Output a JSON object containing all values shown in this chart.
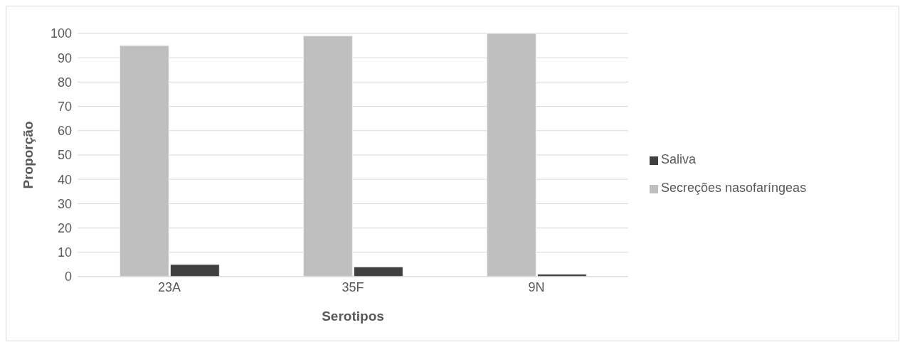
{
  "chart_data": {
    "type": "bar",
    "xlabel": "Serotipos",
    "ylabel": "Proporção",
    "categories": [
      "23A",
      "35F",
      "9N"
    ],
    "series": [
      {
        "name": "Secreções nasofaríngeas",
        "color": "#bfbfbf",
        "values": [
          95,
          99,
          100
        ]
      },
      {
        "name": "Saliva",
        "color": "#404040",
        "values": [
          5,
          4,
          1
        ]
      }
    ],
    "ylim": [
      0,
      100
    ],
    "yticks": [
      0,
      10,
      20,
      30,
      40,
      50,
      60,
      70,
      80,
      90,
      100
    ],
    "grid": "y",
    "legend": "right"
  }
}
